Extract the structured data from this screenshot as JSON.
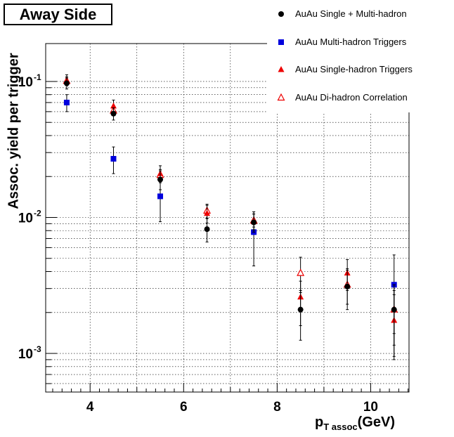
{
  "chart_data": {
    "type": "scatter",
    "title": "Away Side",
    "xlabel_main": "p",
    "xlabel_sub": "T assoc",
    "xlabel_unit": "(GeV)",
    "ylabel": "Assoc. yield per trigger",
    "yscale": "log",
    "xlim": [
      3.05,
      10.82
    ],
    "ylim": [
      0.00052,
      0.19
    ],
    "grid": true,
    "legend_position": "top-right",
    "x_ticks": [
      {
        "value": 4,
        "label": "4"
      },
      {
        "value": 6,
        "label": "6"
      },
      {
        "value": 8,
        "label": "8"
      },
      {
        "value": 10,
        "label": "10"
      }
    ],
    "y_ticks": [
      {
        "value": 0.1,
        "base": "10",
        "exp": "-1"
      },
      {
        "value": 0.01,
        "base": "10",
        "exp": "-2"
      },
      {
        "value": 0.001,
        "base": "10",
        "exp": "-3"
      }
    ],
    "series": [
      {
        "name": "AuAu Single + Multi-hadron",
        "marker": "circle",
        "color": "#000000",
        "points": [
          {
            "x": 3.5,
            "y": 0.097,
            "lo": 0.088,
            "hi": 0.106
          },
          {
            "x": 4.5,
            "y": 0.058,
            "lo": 0.052,
            "hi": 0.064
          },
          {
            "x": 5.5,
            "y": 0.019,
            "lo": 0.016,
            "hi": 0.022
          },
          {
            "x": 6.5,
            "y": 0.0082,
            "lo": 0.0066,
            "hi": 0.0098
          },
          {
            "x": 7.5,
            "y": 0.0092,
            "lo": 0.0078,
            "hi": 0.011
          },
          {
            "x": 8.5,
            "y": 0.0021,
            "lo": 0.00125,
            "hi": 0.0029
          },
          {
            "x": 9.5,
            "y": 0.0031,
            "lo": 0.0021,
            "hi": 0.0041
          },
          {
            "x": 10.5,
            "y": 0.0021,
            "lo": 0.00095,
            "hi": 0.0032
          }
        ]
      },
      {
        "name": "AuAu Multi-hadron Triggers",
        "marker": "square",
        "color": "#0000dd",
        "points": [
          {
            "x": 3.5,
            "y": 0.07,
            "lo": 0.06,
            "hi": 0.08
          },
          {
            "x": 4.5,
            "y": 0.027,
            "lo": 0.021,
            "hi": 0.033
          },
          {
            "x": 5.5,
            "y": 0.0143,
            "lo": 0.0093,
            "hi": 0.0195
          },
          {
            "x": 7.5,
            "y": 0.0078,
            "lo": 0.0044,
            "hi": 0.011
          },
          {
            "x": 10.5,
            "y": 0.0032,
            "lo": 0.00115,
            "hi": 0.0053
          }
        ]
      },
      {
        "name": "AuAu Single-hadron Triggers",
        "marker": "triangle",
        "color": "#ee0000",
        "points": [
          {
            "x": 3.5,
            "y": 0.1,
            "lo": 0.093,
            "hi": 0.112
          },
          {
            "x": 4.5,
            "y": 0.066,
            "lo": 0.06,
            "hi": 0.073
          },
          {
            "x": 5.5,
            "y": 0.021,
            "lo": 0.018,
            "hi": 0.024
          },
          {
            "x": 6.5,
            "y": 0.0107,
            "lo": 0.0091,
            "hi": 0.0123
          },
          {
            "x": 7.5,
            "y": 0.0093,
            "lo": 0.0081,
            "hi": 0.0106
          },
          {
            "x": 8.5,
            "y": 0.0026,
            "lo": 0.0016,
            "hi": 0.0034
          },
          {
            "x": 9.5,
            "y": 0.0039,
            "lo": 0.0029,
            "hi": 0.0049
          },
          {
            "x": 10.5,
            "y": 0.00175,
            "lo": 0.0009,
            "hi": 0.0027
          }
        ]
      },
      {
        "name": "AuAu Di-hadron Correlation",
        "marker": "triangle-open",
        "color": "#ee0000",
        "points": [
          {
            "x": 3.5,
            "y": 0.101,
            "lo": 0.094,
            "hi": 0.108
          },
          {
            "x": 4.5,
            "y": 0.061,
            "lo": 0.056,
            "hi": 0.066
          },
          {
            "x": 5.5,
            "y": 0.0205,
            "lo": 0.0185,
            "hi": 0.0225
          },
          {
            "x": 6.5,
            "y": 0.0112,
            "lo": 0.0099,
            "hi": 0.0125
          },
          {
            "x": 7.5,
            "y": 0.0095,
            "lo": 0.0085,
            "hi": 0.0106
          },
          {
            "x": 8.5,
            "y": 0.0039,
            "lo": 0.0028,
            "hi": 0.0051
          },
          {
            "x": 9.5,
            "y": 0.0032,
            "lo": 0.0023,
            "hi": 0.0042
          },
          {
            "x": 10.5,
            "y": 0.0021,
            "lo": 0.0014,
            "hi": 0.0029
          }
        ]
      }
    ]
  }
}
